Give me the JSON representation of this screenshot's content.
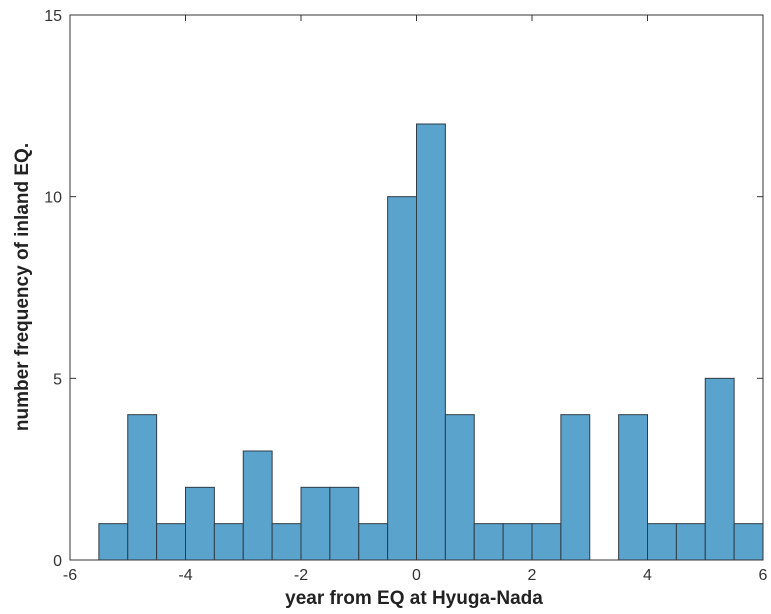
{
  "chart_data": {
    "type": "bar",
    "title": "",
    "xlabel": "year from EQ at Hyuga-Nada",
    "ylabel": "number frequency of inland EQ.",
    "xlim": [
      -6,
      6
    ],
    "ylim": [
      0,
      15
    ],
    "x_ticks": [
      -6,
      -4,
      -2,
      0,
      2,
      4,
      6
    ],
    "y_ticks": [
      0,
      5,
      10,
      15
    ],
    "bin_width": 0.5,
    "bar_color": "#5aa3cc",
    "bins": [
      {
        "x_start": -5.5,
        "x_end": -5.0,
        "value": 1
      },
      {
        "x_start": -5.0,
        "x_end": -4.5,
        "value": 4
      },
      {
        "x_start": -4.5,
        "x_end": -4.0,
        "value": 1
      },
      {
        "x_start": -4.0,
        "x_end": -3.5,
        "value": 2
      },
      {
        "x_start": -3.5,
        "x_end": -3.0,
        "value": 1
      },
      {
        "x_start": -3.0,
        "x_end": -2.5,
        "value": 3
      },
      {
        "x_start": -2.5,
        "x_end": -2.0,
        "value": 1
      },
      {
        "x_start": -2.0,
        "x_end": -1.5,
        "value": 2
      },
      {
        "x_start": -1.5,
        "x_end": -1.0,
        "value": 2
      },
      {
        "x_start": -1.0,
        "x_end": -0.5,
        "value": 1
      },
      {
        "x_start": -0.5,
        "x_end": 0.0,
        "value": 10
      },
      {
        "x_start": 0.0,
        "x_end": 0.5,
        "value": 12
      },
      {
        "x_start": 0.5,
        "x_end": 1.0,
        "value": 4
      },
      {
        "x_start": 1.0,
        "x_end": 1.5,
        "value": 1
      },
      {
        "x_start": 1.5,
        "x_end": 2.0,
        "value": 1
      },
      {
        "x_start": 2.0,
        "x_end": 2.5,
        "value": 1
      },
      {
        "x_start": 2.5,
        "x_end": 3.0,
        "value": 4
      },
      {
        "x_start": 3.0,
        "x_end": 3.5,
        "value": 0
      },
      {
        "x_start": 3.5,
        "x_end": 4.0,
        "value": 4
      },
      {
        "x_start": 4.0,
        "x_end": 4.5,
        "value": 1
      },
      {
        "x_start": 4.5,
        "x_end": 5.0,
        "value": 1
      },
      {
        "x_start": 5.0,
        "x_end": 5.5,
        "value": 5
      },
      {
        "x_start": 5.5,
        "x_end": 6.0,
        "value": 1
      }
    ],
    "grid": false,
    "box": true
  }
}
